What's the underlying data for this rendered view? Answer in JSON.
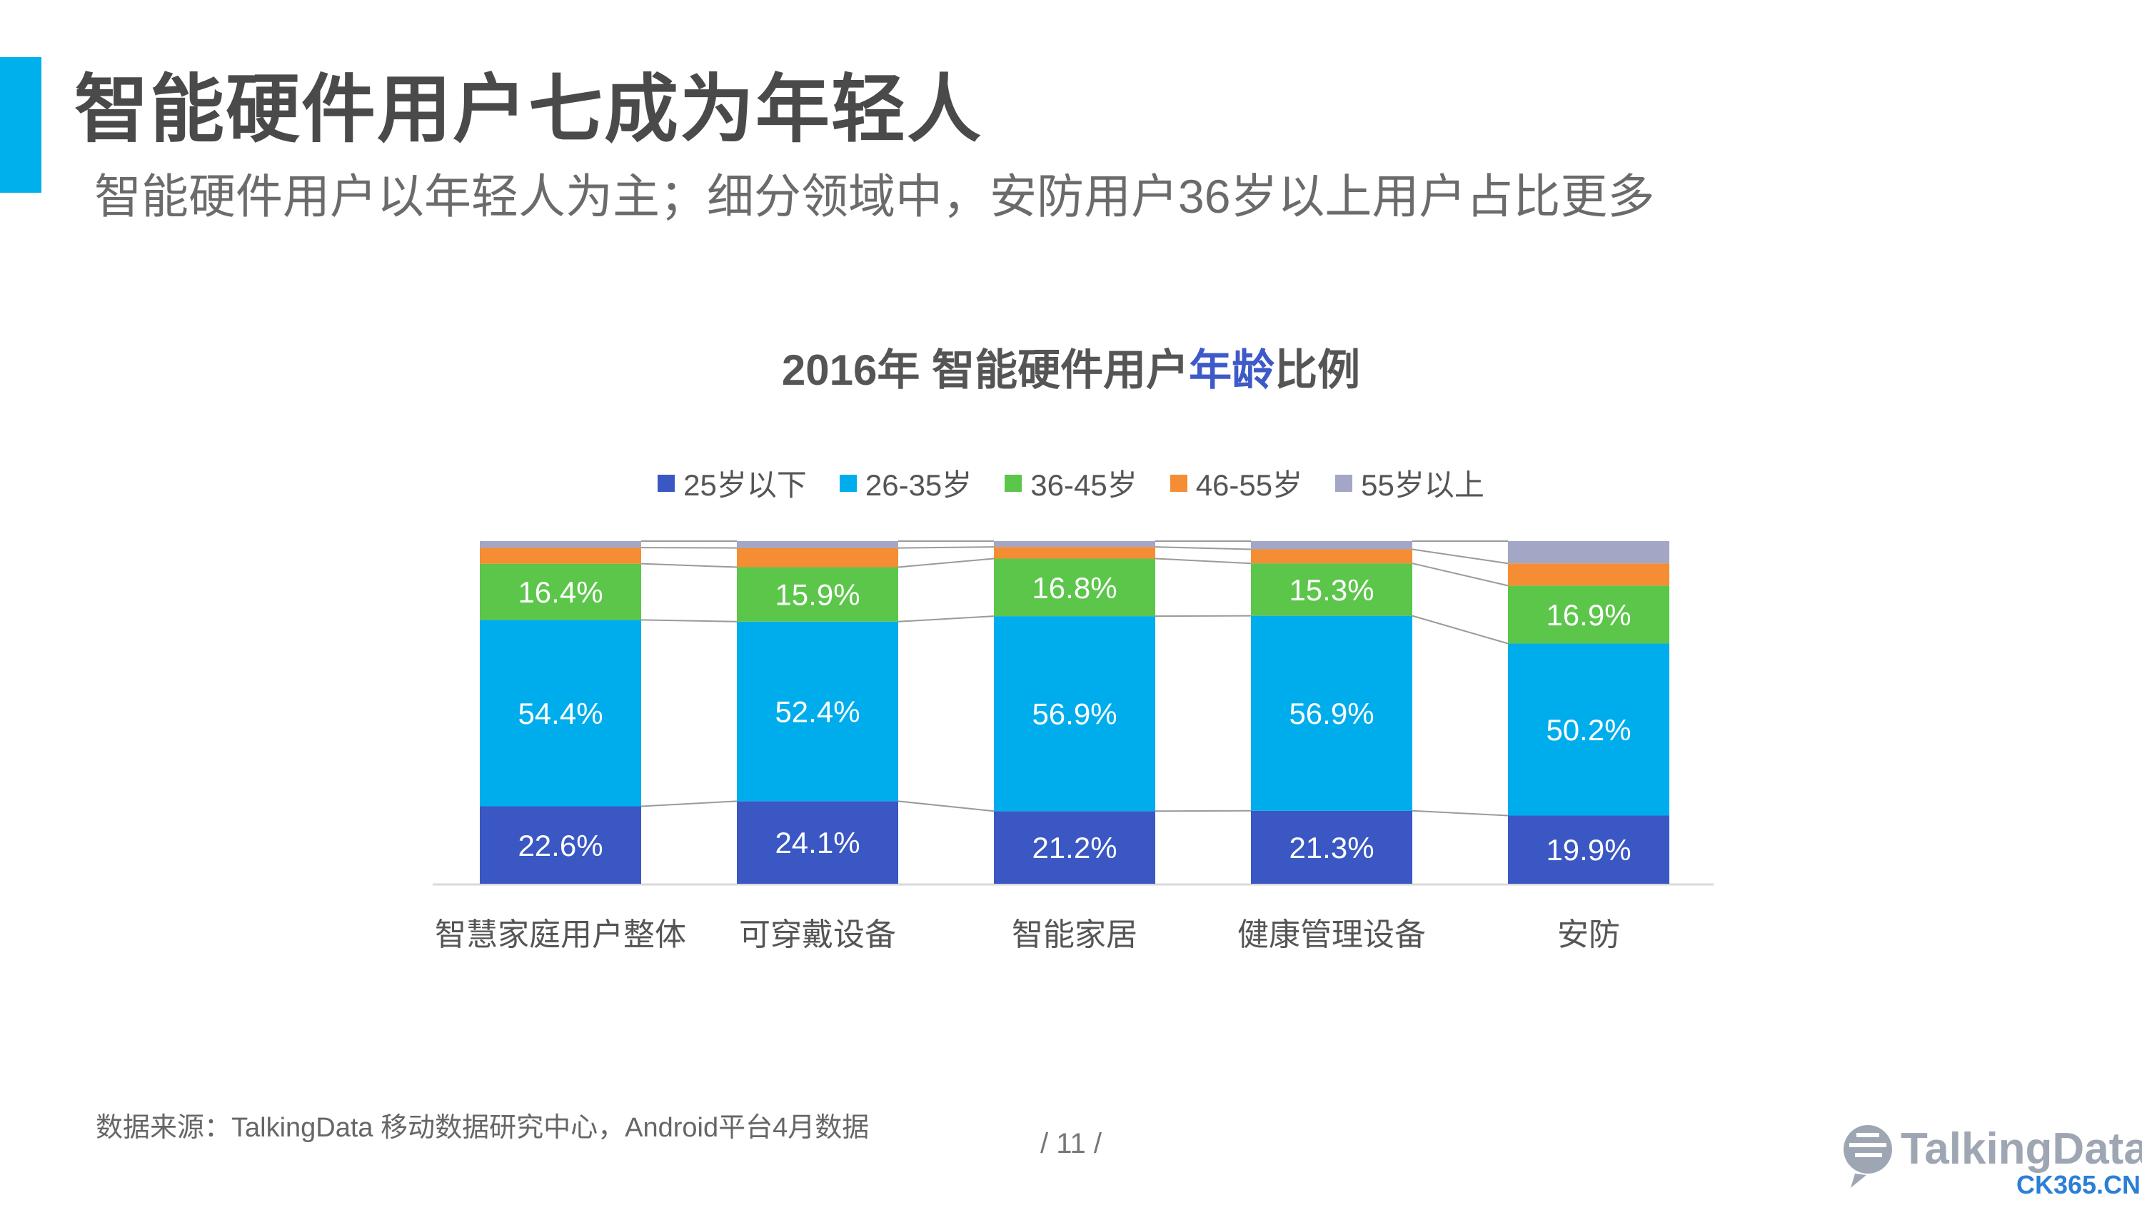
{
  "header": {
    "title": "智能硬件用户七成为年轻人",
    "subtitle": "智能硬件用户以年轻人为主；细分领域中，安防用户36岁以上用户占比更多"
  },
  "chart_data": {
    "type": "bar",
    "stacked": true,
    "title_part1": "2016年 智能硬件用户",
    "title_highlight": "年龄",
    "title_part2": "比例",
    "categories": [
      "智慧家庭用户整体",
      "可穿戴设备",
      "智能家居",
      "健康管理设备",
      "安防"
    ],
    "legend_position": "top",
    "grid": false,
    "ylim": [
      0,
      100
    ],
    "series": [
      {
        "name": "25岁以下",
        "color": "#3a57c4",
        "values": [
          22.6,
          24.1,
          21.2,
          21.3,
          19.9
        ],
        "labels": [
          "22.6%",
          "24.1%",
          "21.2%",
          "21.3%",
          "19.9%"
        ]
      },
      {
        "name": "26-35岁",
        "color": "#00adec",
        "values": [
          54.4,
          52.4,
          56.9,
          56.9,
          50.2
        ],
        "labels": [
          "54.4%",
          "52.4%",
          "56.9%",
          "56.9%",
          "50.2%"
        ]
      },
      {
        "name": "36-45岁",
        "color": "#5cc64a",
        "values": [
          16.4,
          15.9,
          16.8,
          15.3,
          16.9
        ],
        "labels": [
          "16.4%",
          "15.9%",
          "16.8%",
          "15.3%",
          "16.9%"
        ]
      },
      {
        "name": "46-55岁",
        "color": "#f48d33",
        "values": [
          4.7,
          5.6,
          3.4,
          4.1,
          6.5
        ],
        "labels": [
          "",
          "",
          "",
          "",
          ""
        ]
      },
      {
        "name": "55岁以上",
        "color": "#a3a6c4",
        "values": [
          1.9,
          2.0,
          1.7,
          2.4,
          6.5
        ],
        "labels": [
          "",
          "",
          "",
          "",
          ""
        ]
      }
    ]
  },
  "footer": {
    "source": "数据来源：TalkingData 移动数据研究中心，Android平台4月数据",
    "page_number": "/  11  /",
    "logo_text": "TalkingData",
    "watermark": "CK365.CN"
  }
}
